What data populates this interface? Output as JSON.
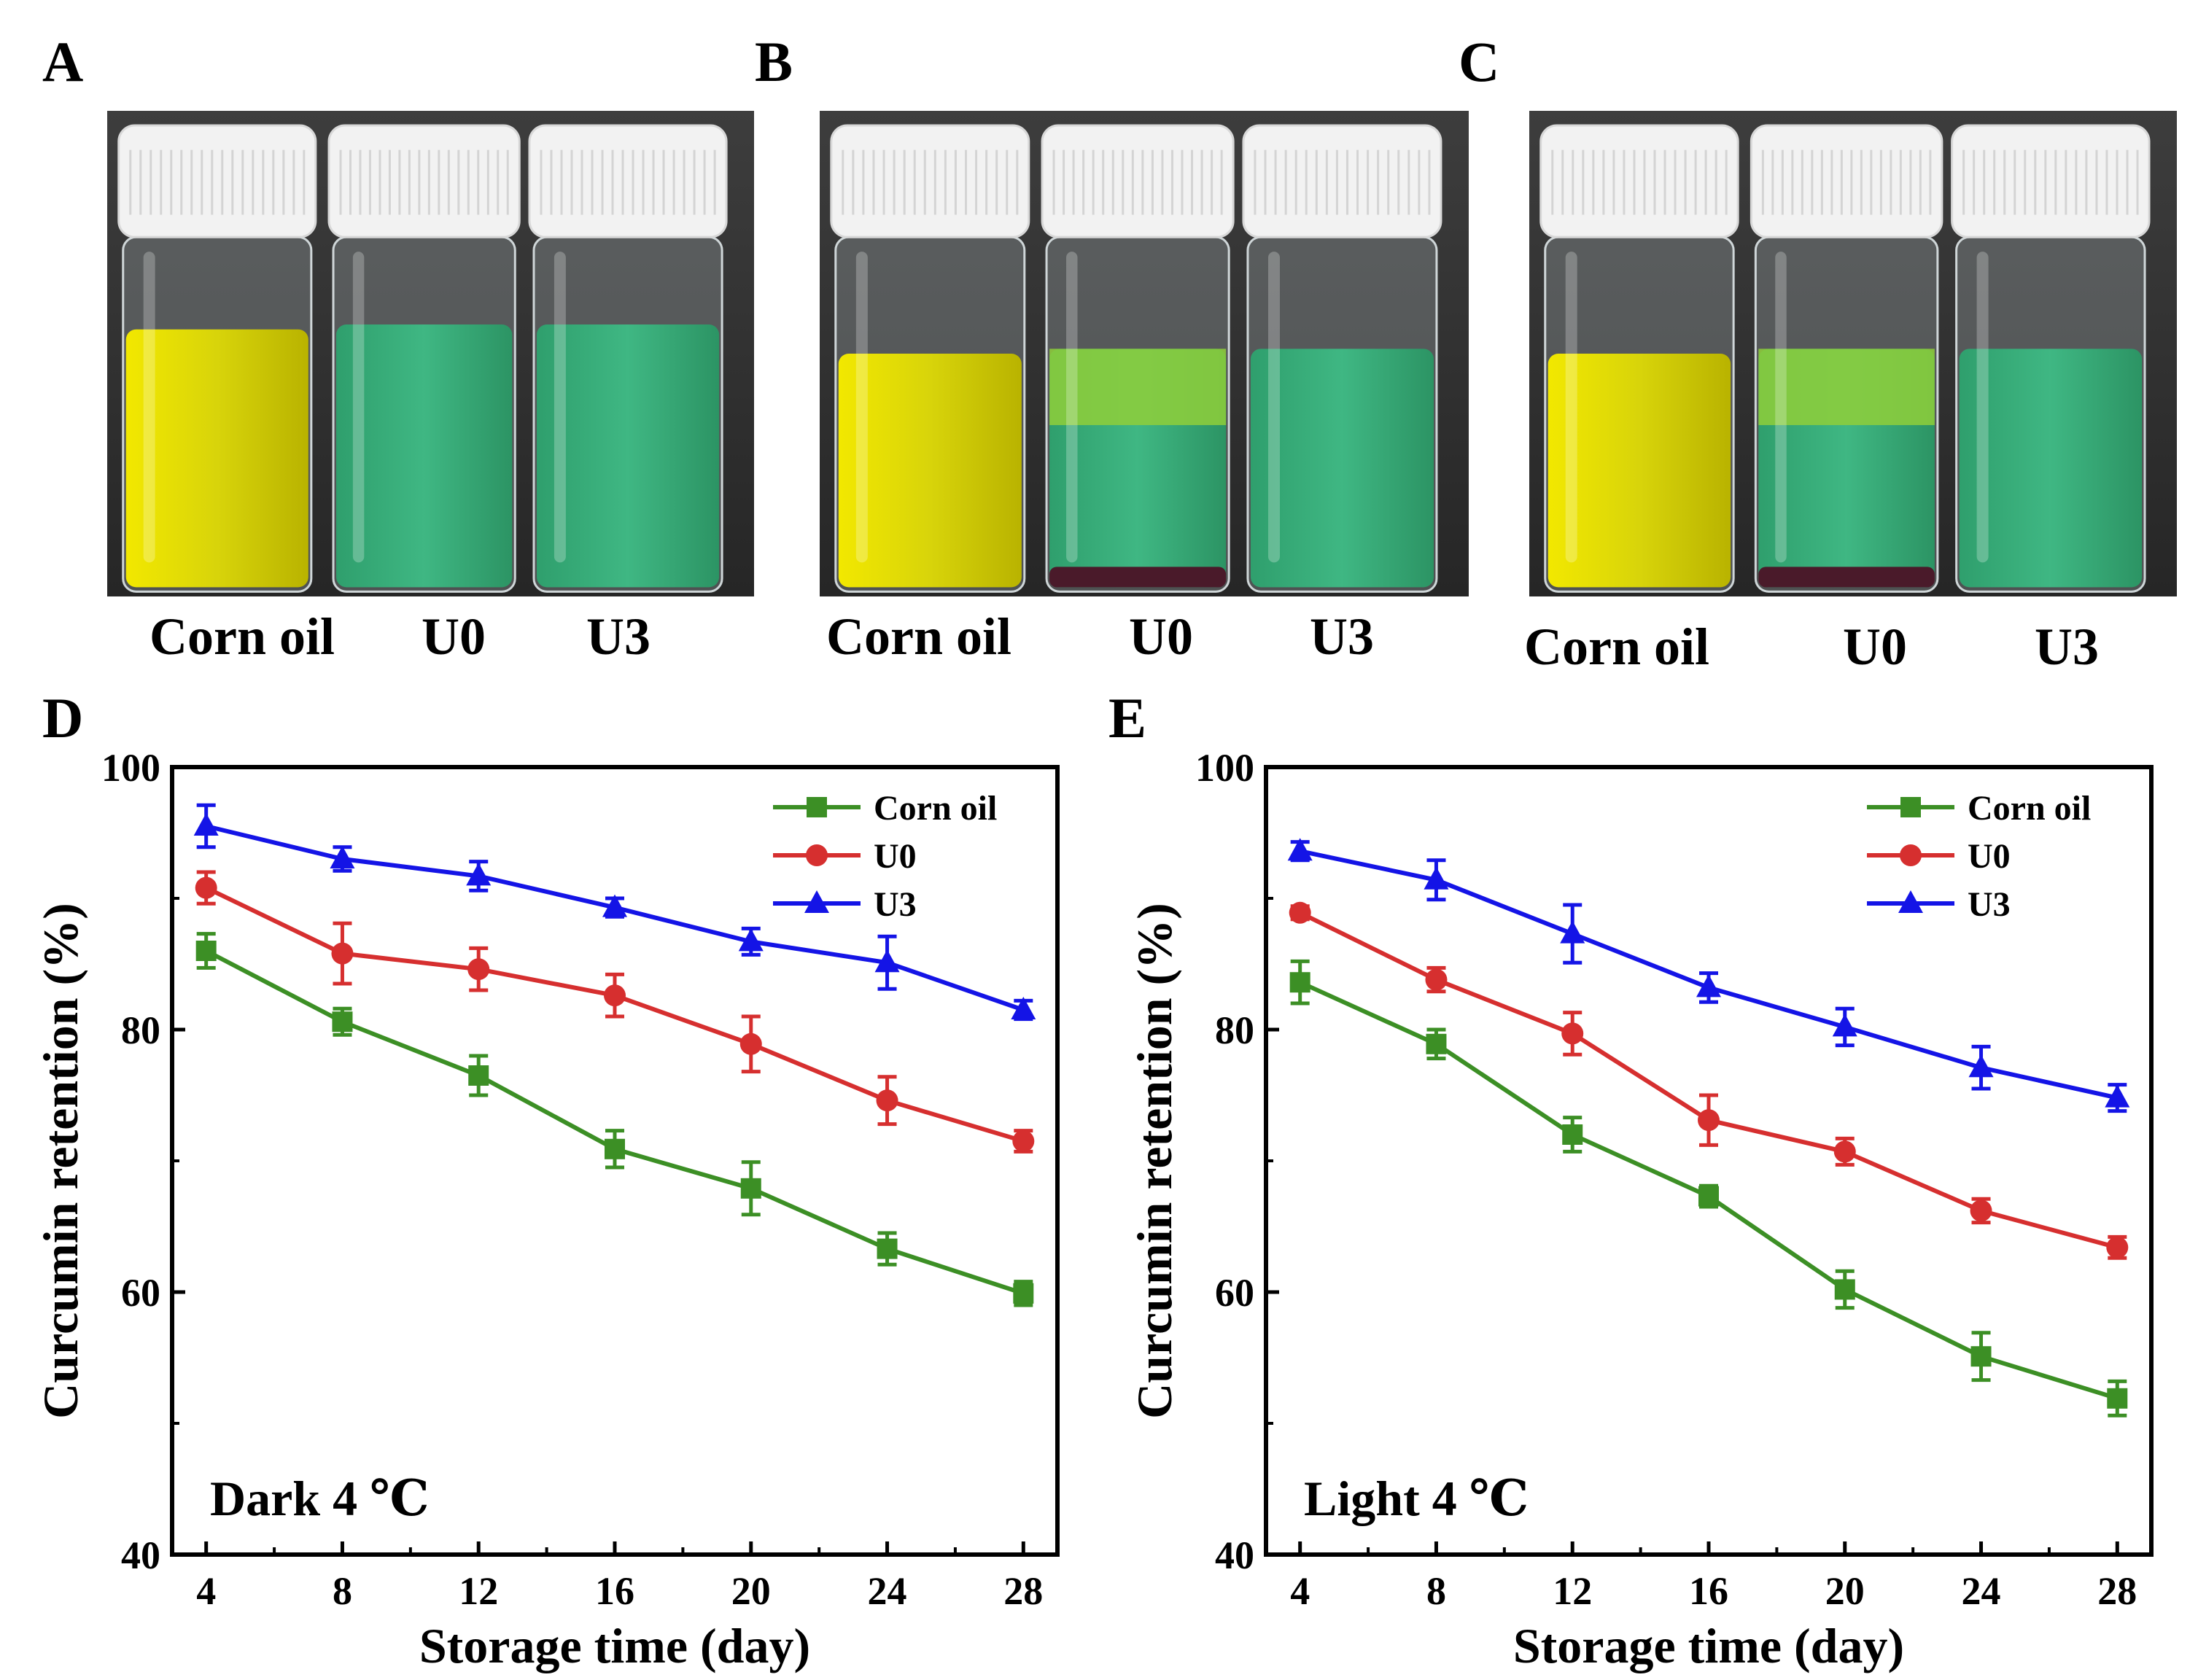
{
  "panels": {
    "A": {
      "letter": "A",
      "labels": [
        "Corn oil",
        "U0",
        "U3"
      ]
    },
    "B": {
      "letter": "B",
      "labels": [
        "Corn oil",
        "U0",
        "U3"
      ]
    },
    "C": {
      "letter": "C",
      "labels": [
        "Corn oil",
        "U0",
        "U3"
      ]
    },
    "D": {
      "letter": "D"
    },
    "E": {
      "letter": "E"
    }
  },
  "colors": {
    "corn_oil": "#3c8f25",
    "u0": "#d62f2f",
    "u3": "#1414e6",
    "oil_yellow": "#d8d40a",
    "emulsion_green": "#3fb783",
    "cap_white": "#f2f2f2",
    "sediment": "#4a1a2a"
  },
  "chart_data": [
    {
      "type": "line",
      "panel": "D",
      "annotation": "Dark  4 ℃",
      "xlabel": "Storage time (day)",
      "ylabel": "Curcumin retention (%)",
      "xlim": [
        3,
        29
      ],
      "ylim": [
        40,
        100
      ],
      "xticks": [
        4,
        8,
        12,
        16,
        20,
        24,
        28
      ],
      "yticks": [
        40,
        60,
        80,
        100
      ],
      "legend_position": "top-right",
      "x": [
        4,
        8,
        12,
        16,
        20,
        24,
        28
      ],
      "series": [
        {
          "name": "Corn oil",
          "marker": "square",
          "color_key": "corn_oil",
          "values": [
            86.0,
            80.6,
            76.5,
            70.9,
            67.9,
            63.3,
            59.9
          ],
          "errors": [
            1.3,
            1.0,
            1.5,
            1.4,
            2.0,
            1.2,
            0.9
          ]
        },
        {
          "name": "U0",
          "marker": "circle",
          "color_key": "u0",
          "values": [
            90.8,
            85.8,
            84.6,
            82.6,
            78.9,
            74.6,
            71.5
          ],
          "errors": [
            1.2,
            2.3,
            1.6,
            1.6,
            2.1,
            1.8,
            0.8
          ]
        },
        {
          "name": "U3",
          "marker": "triangle",
          "color_key": "u3",
          "values": [
            95.5,
            93.0,
            91.7,
            89.3,
            86.7,
            85.1,
            81.5
          ],
          "errors": [
            1.6,
            0.9,
            1.1,
            0.7,
            1.0,
            2.0,
            0.7
          ]
        }
      ]
    },
    {
      "type": "line",
      "panel": "E",
      "annotation": "Light  4 ℃",
      "xlabel": "Storage time (day)",
      "ylabel": "Curcumin retention (%)",
      "xlim": [
        3,
        29
      ],
      "ylim": [
        40,
        100
      ],
      "xticks": [
        4,
        8,
        12,
        16,
        20,
        24,
        28
      ],
      "yticks": [
        40,
        60,
        80,
        100
      ],
      "legend_position": "top-right",
      "x": [
        4,
        8,
        12,
        16,
        20,
        24,
        28
      ],
      "series": [
        {
          "name": "Corn oil",
          "marker": "square",
          "color_key": "corn_oil",
          "values": [
            83.6,
            78.9,
            72.0,
            67.3,
            60.2,
            55.1,
            51.9
          ],
          "errors": [
            1.6,
            1.1,
            1.3,
            0.8,
            1.4,
            1.8,
            1.3
          ]
        },
        {
          "name": "U0",
          "marker": "circle",
          "color_key": "u0",
          "values": [
            88.9,
            83.8,
            79.7,
            73.1,
            70.7,
            66.2,
            63.4
          ],
          "errors": [
            0.5,
            0.9,
            1.6,
            1.9,
            1.0,
            0.9,
            0.8
          ]
        },
        {
          "name": "U3",
          "marker": "triangle",
          "color_key": "u3",
          "values": [
            93.6,
            91.4,
            87.3,
            83.2,
            80.2,
            77.1,
            74.8
          ],
          "errors": [
            0.7,
            1.5,
            2.2,
            1.1,
            1.4,
            1.6,
            1.0
          ]
        }
      ]
    }
  ]
}
